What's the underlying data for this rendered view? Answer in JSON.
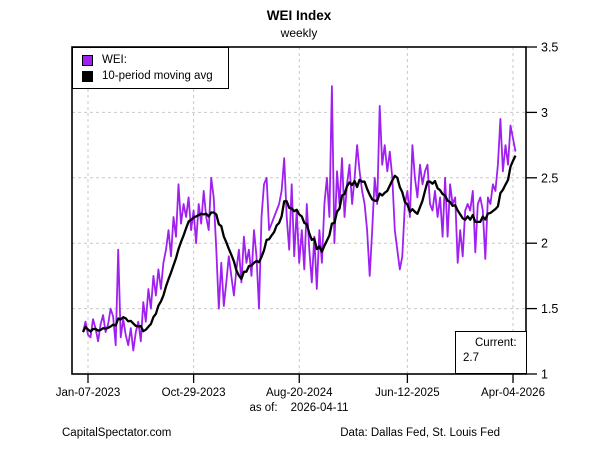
{
  "title": "WEI Index",
  "subtitle": "weekly",
  "legend": {
    "items": [
      {
        "label": "WEI:",
        "color": "#A020F0"
      },
      {
        "label": "10-period moving avg",
        "color": "#000000"
      }
    ]
  },
  "current_box": {
    "label": "Current:",
    "value": "2.7"
  },
  "as_of": {
    "label": "as of:",
    "date": "2026-04-11"
  },
  "footer": {
    "left": "CapitalSpectator.com",
    "right": "Data: Dallas Fed, St. Louis Fed"
  },
  "colors": {
    "background": "#FFFFFF",
    "plot_border": "#000000",
    "gridline": "#C9C9C9",
    "tick": "#000000",
    "wei_line": "#A020F0",
    "ma_line": "#000000"
  },
  "chart_data": {
    "type": "line",
    "title": "WEI Index",
    "subtitle": "weekly",
    "x_unit": "weeks since 2023-01-07",
    "x_first_week": -2,
    "x_ticks": [
      {
        "week": 0,
        "label": "Jan-07-2023"
      },
      {
        "week": 42,
        "label": "Oct-29-2023"
      },
      {
        "week": 84,
        "label": "Aug-20-2024"
      },
      {
        "week": 127,
        "label": "Jun-12-2025"
      },
      {
        "week": 169,
        "label": "Apr-04-2026"
      }
    ],
    "y_ticks": [
      1,
      1.5,
      2,
      2.5,
      3,
      3.5
    ],
    "ylim": [
      1,
      3.5
    ],
    "grid": {
      "style": "dashed",
      "horizontal": true,
      "vertical": true
    },
    "legend_position": "top-left",
    "current": 2.7,
    "series": [
      {
        "name": "WEI:",
        "color": "#A020F0",
        "values": [
          1.32,
          1.4,
          1.3,
          1.28,
          1.42,
          1.35,
          1.25,
          1.38,
          1.45,
          1.32,
          1.38,
          1.5,
          1.44,
          1.22,
          1.95,
          1.28,
          1.42,
          1.3,
          1.22,
          1.35,
          1.18,
          1.32,
          1.4,
          1.25,
          1.55,
          1.4,
          1.65,
          1.5,
          1.75,
          1.6,
          1.8,
          1.65,
          1.85,
          1.95,
          2.1,
          1.9,
          2.2,
          2.05,
          2.45,
          2.15,
          2.3,
          2.2,
          2.35,
          2.1,
          2.25,
          2.0,
          2.3,
          2.15,
          2.4,
          2.2,
          2.1,
          2.5,
          2.35,
          1.95,
          1.5,
          1.85,
          1.52,
          1.7,
          1.9,
          1.75,
          1.6,
          1.8,
          1.95,
          1.7,
          2.05,
          1.85,
          1.95,
          1.75,
          2.1,
          1.9,
          1.5,
          2.2,
          2.45,
          2.5,
          2.1,
          2.15,
          2.2,
          2.25,
          2.3,
          2.4,
          2.65,
          2.2,
          1.95,
          2.45,
          1.9,
          2.25,
          1.85,
          2.1,
          1.8,
          2.3,
          1.95,
          1.7,
          2.05,
          1.65,
          2.1,
          1.85,
          2.3,
          2.5,
          2.2,
          3.2,
          2.0,
          2.55,
          2.3,
          2.65,
          2.2,
          2.45,
          2.6,
          2.3,
          2.5,
          2.75,
          2.55,
          2.4,
          2.3,
          2.1,
          1.75,
          2.1,
          2.5,
          2.3,
          3.05,
          2.6,
          2.75,
          2.55,
          2.7,
          2.5,
          2.1,
          1.95,
          1.8,
          1.9,
          2.3,
          2.4,
          2.2,
          2.75,
          2.5,
          2.35,
          2.6,
          2.45,
          2.55,
          2.6,
          2.3,
          2.25,
          2.4,
          2.2,
          2.35,
          2.05,
          2.5,
          2.05,
          2.45,
          2.3,
          2.35,
          1.85,
          2.1,
          1.9,
          2.25,
          2.3,
          2.25,
          2.4,
          1.93,
          2.3,
          2.35,
          2.25,
          1.88,
          2.35,
          2.3,
          2.45,
          2.4,
          2.6,
          2.95,
          2.55,
          2.75,
          2.6,
          2.9,
          2.8,
          2.7
        ]
      },
      {
        "name": "10-period moving avg",
        "color": "#000000",
        "derived": "trailing_moving_average_of_first_series",
        "window": 10
      }
    ]
  }
}
